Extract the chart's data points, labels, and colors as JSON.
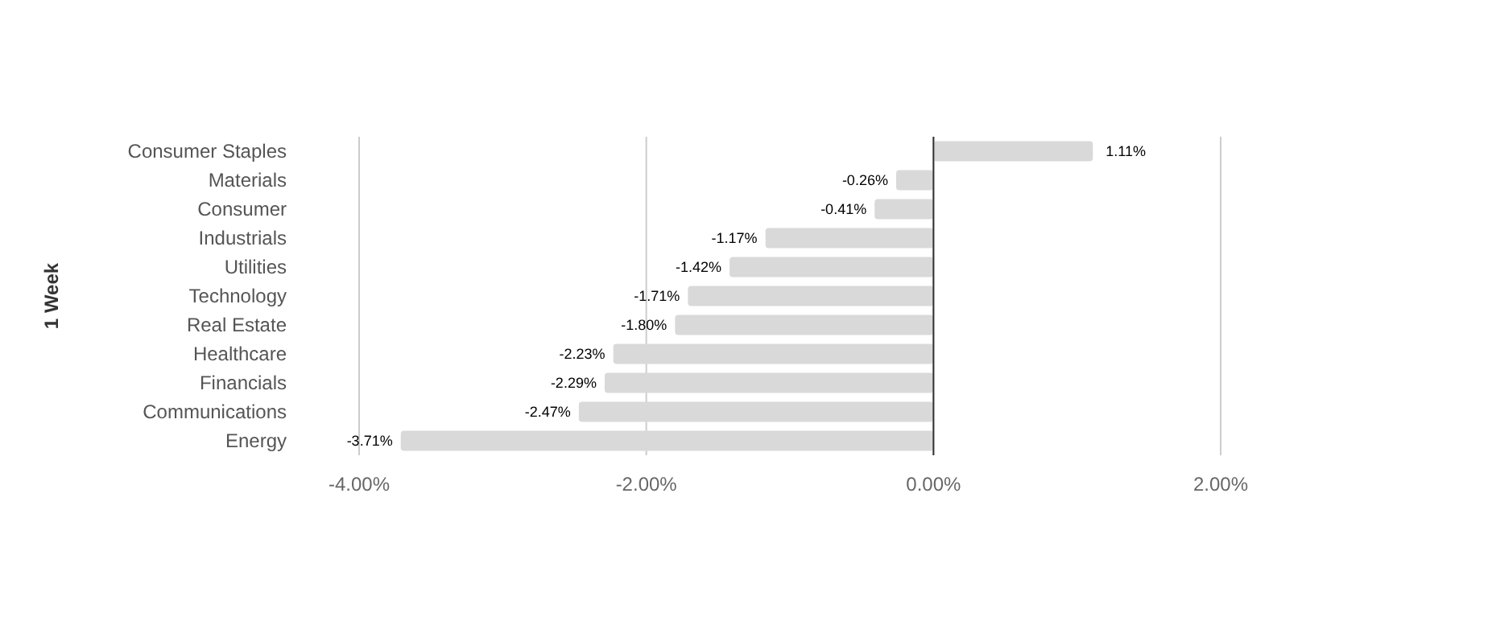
{
  "chart_data": {
    "type": "bar",
    "orientation": "horizontal",
    "ylabel": "1 Week",
    "categories": [
      "Consumer Staples",
      "Materials",
      "Consumer",
      "Industrials",
      "Utilities",
      "Technology",
      "Real Estate",
      "Healthcare",
      "Financials",
      "Communications",
      "Energy"
    ],
    "values": [
      1.11,
      -0.26,
      -0.41,
      -1.17,
      -1.42,
      -1.71,
      -1.8,
      -2.23,
      -2.29,
      -2.47,
      -3.71
    ],
    "value_labels": [
      "1.11%",
      "-0.26%",
      "-0.41%",
      "-1.17%",
      "-1.42%",
      "-1.71%",
      "-1.80%",
      "-2.23%",
      "-2.29%",
      "-2.47%",
      "-3.71%"
    ],
    "color": "#d9d9d9",
    "xlim": [
      -4,
      2
    ],
    "xticks": [
      {
        "value": -4,
        "label": "-4.00%"
      },
      {
        "value": -2,
        "label": "-2.00%"
      },
      {
        "value": 0,
        "label": "0.00%"
      },
      {
        "value": 2,
        "label": "2.00%"
      }
    ],
    "grid": "x"
  }
}
